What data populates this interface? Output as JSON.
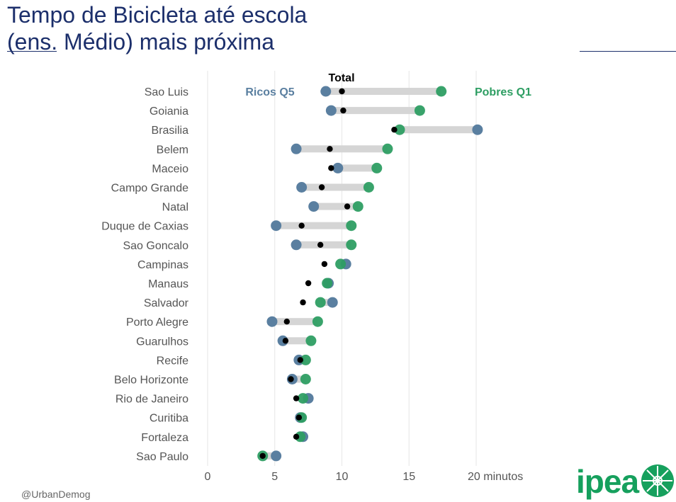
{
  "title": {
    "line1": "Tempo de Bicicleta até escola",
    "line2": "(ens. Médio) mais próxima"
  },
  "credit": "@UrbanDemog",
  "logo": {
    "text": "ipea",
    "color": "#16a05d"
  },
  "colors": {
    "ricos": "#5a7fa0",
    "pobres": "#2e9e63",
    "total": "#000000",
    "bar": "#d5d5d5",
    "grid": "#e6e6e6",
    "axis_text": "#555555",
    "title": "#1c2f6b"
  },
  "chart_data": {
    "type": "dumbbell",
    "x_unit_label": "minutos",
    "xlim": [
      0,
      22
    ],
    "xticks": [
      0,
      5,
      10,
      15,
      20
    ],
    "xtick_labels": [
      "0",
      "5",
      "10",
      "15",
      "20 minutos"
    ],
    "grid": true,
    "legend": {
      "ricos": "Ricos Q5",
      "pobres": "Pobres Q1",
      "total": "Total"
    },
    "cities": [
      {
        "name": "Sao Luis",
        "ricos": 8.8,
        "pobres": 17.4,
        "total": 10.0
      },
      {
        "name": "Goiania",
        "ricos": 9.2,
        "pobres": 15.8,
        "total": 10.1
      },
      {
        "name": "Brasilia",
        "ricos": 20.1,
        "pobres": 14.3,
        "total": 13.9
      },
      {
        "name": "Belem",
        "ricos": 6.6,
        "pobres": 13.4,
        "total": 9.1
      },
      {
        "name": "Maceio",
        "ricos": 9.7,
        "pobres": 12.6,
        "total": 9.2
      },
      {
        "name": "Campo Grande",
        "ricos": 7.0,
        "pobres": 12.0,
        "total": 8.5
      },
      {
        "name": "Natal",
        "ricos": 7.9,
        "pobres": 11.2,
        "total": 10.4
      },
      {
        "name": "Duque de Caxias",
        "ricos": 5.1,
        "pobres": 10.7,
        "total": 7.0
      },
      {
        "name": "Sao Goncalo",
        "ricos": 6.6,
        "pobres": 10.7,
        "total": 8.4
      },
      {
        "name": "Campinas",
        "ricos": 10.3,
        "pobres": 9.9,
        "total": 8.7
      },
      {
        "name": "Manaus",
        "ricos": 9.0,
        "pobres": 8.9,
        "total": 7.5
      },
      {
        "name": "Salvador",
        "ricos": 9.3,
        "pobres": 8.4,
        "total": 7.1
      },
      {
        "name": "Porto Alegre",
        "ricos": 4.8,
        "pobres": 8.2,
        "total": 5.9
      },
      {
        "name": "Guarulhos",
        "ricos": 5.6,
        "pobres": 7.7,
        "total": 5.8
      },
      {
        "name": "Recife",
        "ricos": 6.8,
        "pobres": 7.3,
        "total": 6.9
      },
      {
        "name": "Belo Horizonte",
        "ricos": 6.3,
        "pobres": 7.3,
        "total": 6.2
      },
      {
        "name": "Rio de Janeiro",
        "ricos": 7.5,
        "pobres": 7.1,
        "total": 6.6
      },
      {
        "name": "Curitiba",
        "ricos": 6.9,
        "pobres": 7.0,
        "total": 6.8
      },
      {
        "name": "Fortaleza",
        "ricos": 7.1,
        "pobres": 6.9,
        "total": 6.6
      },
      {
        "name": "Sao Paulo",
        "ricos": 5.1,
        "pobres": 4.1,
        "total": 4.1
      }
    ]
  }
}
